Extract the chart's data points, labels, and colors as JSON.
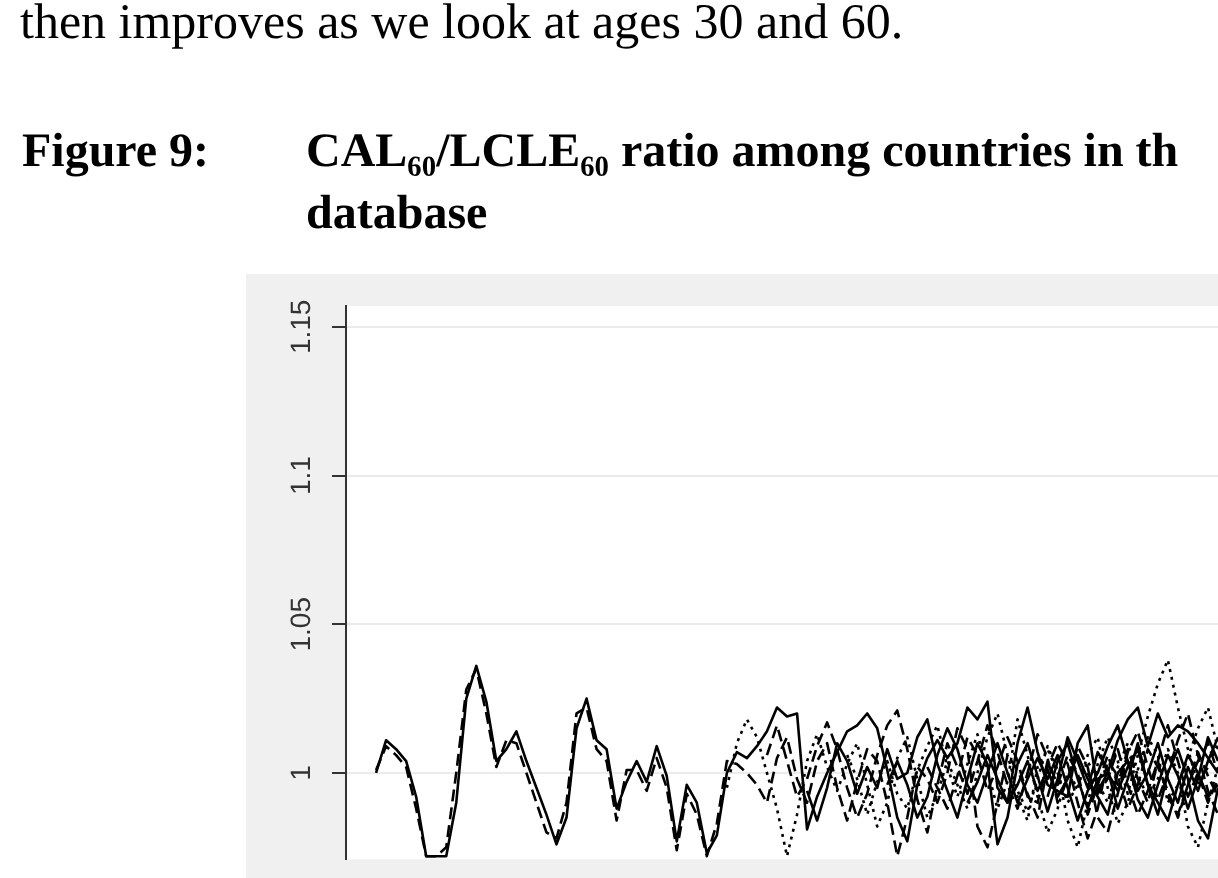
{
  "chart_data": {
    "type": "line",
    "title": "CAL₆₀/LCLE₆₀ ratio among countries in th database",
    "annotations": [
      "then improves as we look at ages 30 and 60.",
      "Figure 9:"
    ],
    "categories": [
      null,
      null,
      null,
      null,
      null,
      null,
      null,
      null,
      null,
      null,
      null,
      null,
      null,
      null,
      null,
      null,
      null,
      null,
      null,
      null,
      null,
      null,
      null,
      null,
      null,
      null,
      null,
      null,
      null,
      null,
      null,
      null,
      null,
      null,
      null,
      null,
      null,
      null,
      null,
      null,
      null,
      null,
      null,
      null,
      null,
      null,
      null,
      null,
      null,
      null,
      null,
      null,
      null,
      null,
      null,
      null,
      null,
      null,
      null,
      null,
      null,
      null,
      null,
      null,
      null,
      null,
      null,
      null,
      null,
      null,
      null,
      null,
      null,
      null,
      null,
      null,
      null,
      null,
      null,
      null,
      null,
      null,
      null,
      null,
      null,
      null,
      null,
      null
    ],
    "ylim": [
      0.971,
      1.157
    ],
    "yticks": [
      1,
      1.05,
      1.1,
      1.15
    ],
    "grid": "y",
    "tick_labels": "y",
    "series": [
      {
        "color": "#000000",
        "line_style": "solid",
        "values": [
          null,
          null,
          null,
          1.0,
          1.011,
          1.008,
          1.004,
          0.992,
          0.972,
          0.972,
          0.972,
          0.99,
          1.025,
          1.036,
          1.024,
          1.004,
          1.008,
          1.014,
          1.004,
          0.995,
          0.986,
          0.976,
          0.985,
          1.015,
          1.025,
          1.011,
          1.008,
          0.988,
          0.997,
          1.004,
          0.997,
          1.009,
          0.999,
          0.977,
          0.996,
          0.99,
          0.973,
          0.979,
          1.0,
          1.007,
          1.005,
          1.009,
          1.014,
          1.022,
          1.019,
          1.02,
          0.981,
          0.992,
          1.0,
          1.007,
          1.014,
          1.016,
          1.02,
          1.015,
          1.001,
          0.985,
          0.977,
          0.996,
          1.005,
          1.011,
          1.005,
          1.01,
          1.022,
          1.018,
          1.024,
          0.995,
          0.99,
          1.01,
          1.022,
          1.007,
          0.996,
          0.994,
          0.992,
          1.01,
          1.016,
          0.994,
          1.0,
          1.011,
          1.018,
          1.022,
          1.009,
          1.02,
          1.012,
          1.016,
          1.014,
          1.01,
          1.005,
          1.0
        ]
      },
      {
        "color": "#000000",
        "line_style": "dashed",
        "values": [
          null,
          null,
          null,
          1.001,
          1.009,
          1.006,
          1.002,
          0.988,
          0.972,
          0.972,
          0.975,
          1.0,
          1.028,
          1.035,
          1.02,
          1.002,
          1.011,
          1.01,
          1.0,
          0.99,
          0.98,
          0.978,
          0.99,
          1.02,
          1.022,
          1.008,
          1.004,
          0.984,
          1.001,
          1.001,
          0.994,
          1.005,
          0.995,
          0.974,
          0.993,
          0.986,
          0.972,
          0.983,
          1.004,
          1.003,
          1.0,
          0.996,
          0.99,
          1.005,
          1.012,
          0.998,
          0.99,
          1.004,
          1.01,
          0.995,
          0.984,
          0.997,
          1.008,
          1.004,
          0.99,
          0.972,
          0.985,
          1.002,
          0.998,
          0.99,
          1.0,
          1.015,
          1.008,
          0.982,
          0.975,
          0.99,
          1.006,
          1.001,
          0.993,
          0.985,
          1.002,
          1.01,
          1.003,
          0.99,
          0.978,
          0.988,
          1.004,
          0.999,
          0.988,
          0.996,
          1.008,
          1.002,
          0.994,
          0.985,
          0.996,
          1.007,
          0.999,
          0.992
        ]
      },
      {
        "color": "#000000",
        "line_style": "dotted",
        "values": [
          null,
          null,
          null,
          null,
          null,
          null,
          null,
          null,
          null,
          null,
          null,
          null,
          null,
          null,
          null,
          null,
          null,
          null,
          null,
          null,
          null,
          null,
          null,
          null,
          null,
          null,
          null,
          null,
          null,
          null,
          null,
          null,
          null,
          null,
          null,
          null,
          null,
          null,
          0.995,
          1.01,
          1.018,
          1.012,
          1.0,
          0.988,
          0.972,
          0.986,
          1.004,
          1.013,
          1.002,
          0.994,
          1.003,
          1.01,
          0.996,
          0.982,
          0.99,
          1.005,
          1.012,
          0.998,
          0.985,
          0.993,
          1.004,
          0.996,
          0.988,
          1.0,
          1.012,
          1.02,
          1.006,
          0.994,
          0.987,
          0.998,
          1.009,
          1.001,
          0.984,
          0.975,
          0.99,
          1.003,
          1.012,
          1.004,
          0.993,
          1.006,
          1.019,
          1.03,
          1.038,
          1.022,
          1.008,
          0.996,
          1.002,
          1.01
        ]
      },
      {
        "color": "#000000",
        "line_style": "dashed",
        "values": [
          null,
          null,
          null,
          null,
          null,
          null,
          null,
          null,
          null,
          null,
          null,
          null,
          null,
          null,
          null,
          null,
          null,
          null,
          null,
          null,
          null,
          null,
          null,
          null,
          null,
          null,
          null,
          null,
          null,
          null,
          null,
          null,
          null,
          null,
          null,
          null,
          null,
          null,
          null,
          null,
          null,
          null,
          1.006,
          1.016,
          1.004,
          0.992,
          0.998,
          1.009,
          1.017,
          1.008,
          0.995,
          0.985,
          0.993,
          1.006,
          1.016,
          1.021,
          1.008,
          0.991,
          0.98,
          0.996,
          1.01,
          1.002,
          0.993,
          1.004,
          1.016,
          1.007,
          0.996,
          0.988,
          1.0,
          1.013,
          1.005,
          0.99,
          0.998,
          1.009,
          1.002,
          0.985,
          0.98,
          0.993,
          1.007,
          1.014,
          1.002,
          0.991,
          1.0,
          1.011,
          1.02,
          1.006,
          0.994,
          0.986
        ]
      },
      {
        "color": "#000000",
        "line_style": "solid",
        "values": [
          null,
          null,
          null,
          null,
          null,
          null,
          null,
          null,
          null,
          null,
          null,
          null,
          null,
          null,
          null,
          null,
          null,
          null,
          null,
          null,
          null,
          null,
          null,
          null,
          null,
          null,
          null,
          null,
          null,
          null,
          null,
          null,
          null,
          null,
          null,
          null,
          null,
          null,
          null,
          null,
          null,
          null,
          null,
          null,
          null,
          null,
          0.994,
          0.984,
          0.995,
          1.01,
          1.004,
          0.993,
          1.002,
          0.995,
          1.008,
          0.998,
          1.0,
          1.012,
          1.018,
          1.003,
          0.994,
          0.985,
          0.998,
          1.01,
          1.003,
          0.976,
          0.985,
          1.003,
          1.01,
          0.999,
          0.987,
          0.998,
          1.012,
          1.004,
          0.995,
          1.007,
          1.001,
          0.988,
          0.998,
          1.01,
          0.996,
          0.986,
          1.0,
          1.008,
          0.998,
          0.984,
          0.978,
          0.995
        ]
      },
      {
        "color": "#000000",
        "line_style": "dotted",
        "values": [
          null,
          null,
          null,
          null,
          null,
          null,
          null,
          null,
          null,
          null,
          null,
          null,
          null,
          null,
          null,
          null,
          null,
          null,
          null,
          null,
          null,
          null,
          null,
          null,
          null,
          null,
          null,
          null,
          null,
          null,
          null,
          null,
          null,
          null,
          null,
          null,
          null,
          null,
          null,
          null,
          null,
          null,
          null,
          null,
          null,
          null,
          null,
          null,
          null,
          null,
          1.006,
          0.998,
          0.986,
          0.997,
          1.004,
          0.993,
          0.988,
          1.001,
          1.009,
          1.016,
          1.002,
          0.992,
          1.003,
          1.013,
          1.001,
          0.988,
          0.997,
          1.018,
          1.006,
          0.992,
          0.98,
          0.988,
          1.0,
          0.995,
          1.006,
          1.012,
          0.995,
          0.983,
          0.99,
          1.001,
          1.012,
          1.006,
          0.99,
          0.996,
          1.005,
          1.015,
          1.022,
          1.008
        ]
      },
      {
        "color": "#000000",
        "line_style": "solid",
        "values": [
          null,
          null,
          null,
          null,
          null,
          null,
          null,
          null,
          null,
          null,
          null,
          null,
          null,
          null,
          null,
          null,
          null,
          null,
          null,
          null,
          null,
          null,
          null,
          null,
          null,
          null,
          null,
          null,
          null,
          null,
          null,
          null,
          null,
          null,
          null,
          null,
          null,
          null,
          null,
          null,
          null,
          null,
          null,
          null,
          null,
          null,
          null,
          null,
          null,
          null,
          null,
          null,
          null,
          null,
          0.996,
          1.004,
          0.996,
          0.985,
          0.992,
          1.006,
          1.015,
          1.008,
          0.996,
          0.99,
          1.0,
          1.01,
          1.0,
          0.99,
          0.998,
          1.005,
          0.998,
          1.006,
          0.995,
          0.984,
          0.994,
          1.0,
          1.009,
          1.016,
          1.004,
          0.991,
          0.985,
          0.996,
          1.006,
          0.999,
          0.988,
          0.998,
          1.012,
          1.004
        ]
      },
      {
        "color": "#000000",
        "line_style": "dashed",
        "values": [
          null,
          null,
          null,
          null,
          null,
          null,
          null,
          null,
          null,
          null,
          null,
          null,
          null,
          null,
          null,
          null,
          null,
          null,
          null,
          null,
          null,
          null,
          null,
          null,
          null,
          null,
          null,
          null,
          null,
          null,
          null,
          null,
          null,
          null,
          null,
          null,
          null,
          null,
          null,
          null,
          null,
          null,
          null,
          null,
          null,
          null,
          null,
          null,
          null,
          null,
          null,
          null,
          null,
          null,
          null,
          null,
          null,
          null,
          1.002,
          0.995,
          0.988,
          0.999,
          1.012,
          1.006,
          0.994,
          1.002,
          1.012,
          1.004,
          0.992,
          0.99,
          1.004,
          0.996,
          1.006,
          1.0,
          0.986,
          0.996,
          1.006,
          0.996,
          1.008,
          0.998,
          0.99,
          1.004,
          1.016,
          1.004,
          0.992,
          1.0,
          0.99,
          0.998
        ]
      },
      {
        "color": "#000000",
        "line_style": "solid",
        "values": [
          null,
          null,
          null,
          null,
          null,
          null,
          null,
          null,
          null,
          null,
          null,
          null,
          null,
          null,
          null,
          null,
          null,
          null,
          null,
          null,
          null,
          null,
          null,
          null,
          null,
          null,
          null,
          null,
          null,
          null,
          null,
          null,
          null,
          null,
          null,
          null,
          null,
          null,
          null,
          null,
          null,
          null,
          null,
          null,
          null,
          null,
          null,
          null,
          null,
          null,
          null,
          null,
          null,
          null,
          null,
          null,
          null,
          null,
          null,
          null,
          null,
          null,
          0.99,
          0.997,
          1.006,
          0.998,
          0.99,
          0.996,
          1.004,
          0.994,
          1.001,
          0.992,
          0.998,
          1.006,
          0.998,
          0.992,
          0.986,
          1.0,
          1.004,
          0.994,
          1.0,
          1.01,
          0.998,
          0.99,
          1.002,
          0.994,
          1.004,
          1.012
        ]
      },
      {
        "color": "#000000",
        "line_style": "dotted",
        "values": [
          null,
          null,
          null,
          null,
          null,
          null,
          null,
          null,
          null,
          null,
          null,
          null,
          null,
          null,
          null,
          null,
          null,
          null,
          null,
          null,
          null,
          null,
          null,
          null,
          null,
          null,
          null,
          null,
          null,
          null,
          null,
          null,
          null,
          null,
          null,
          null,
          null,
          null,
          null,
          null,
          null,
          null,
          null,
          null,
          null,
          null,
          null,
          null,
          null,
          null,
          null,
          null,
          null,
          null,
          null,
          null,
          null,
          null,
          null,
          null,
          null,
          null,
          null,
          null,
          null,
          null,
          1.0,
          0.992,
          0.984,
          1.002,
          1.008,
          1.0,
          0.99,
          0.996,
          1.004,
          0.997,
          0.99,
          1.002,
          1.01,
          0.999,
          0.992,
          0.998,
          1.008,
          1.0,
          0.982,
          0.975,
          0.99,
          1.002
        ]
      },
      {
        "color": "#000000",
        "line_style": "solid",
        "values": [
          null,
          null,
          null,
          null,
          null,
          null,
          null,
          null,
          null,
          null,
          null,
          null,
          null,
          null,
          null,
          null,
          null,
          null,
          null,
          null,
          null,
          null,
          null,
          null,
          null,
          null,
          null,
          null,
          null,
          null,
          null,
          null,
          null,
          null,
          null,
          null,
          null,
          null,
          null,
          null,
          null,
          null,
          null,
          null,
          null,
          null,
          null,
          null,
          null,
          null,
          null,
          null,
          null,
          null,
          null,
          null,
          null,
          null,
          null,
          null,
          null,
          null,
          null,
          null,
          null,
          null,
          null,
          null,
          null,
          null,
          0.992,
          1.004,
          1.01,
          0.998,
          0.988,
          0.998,
          1.0,
          0.994,
          1.002,
          1.008,
          0.996,
          0.99,
          0.984,
          0.996,
          1.006,
          1.0,
          0.992,
          0.996
        ]
      },
      {
        "color": "#000000",
        "line_style": "dashed",
        "values": [
          null,
          null,
          null,
          null,
          null,
          null,
          null,
          null,
          null,
          null,
          null,
          null,
          null,
          null,
          null,
          null,
          null,
          null,
          null,
          null,
          null,
          null,
          null,
          null,
          null,
          null,
          null,
          null,
          null,
          null,
          null,
          null,
          null,
          null,
          null,
          null,
          null,
          null,
          null,
          null,
          null,
          null,
          null,
          null,
          null,
          null,
          null,
          null,
          null,
          null,
          null,
          null,
          null,
          null,
          null,
          null,
          null,
          null,
          null,
          null,
          null,
          null,
          null,
          null,
          null,
          null,
          null,
          null,
          null,
          null,
          null,
          null,
          null,
          null,
          1.0,
          0.993,
          0.998,
          1.008,
          0.996,
          0.986,
          0.994,
          1.004,
          0.992,
          0.986,
          0.996,
          1.004,
          1.01,
          1.0
        ]
      }
    ]
  }
}
